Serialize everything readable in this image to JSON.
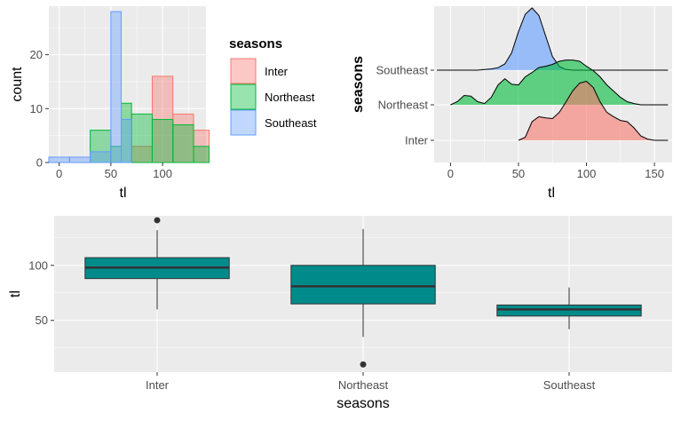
{
  "colors": {
    "Inter": "#F8766D",
    "Northeast": "#00BA38",
    "Southeast": "#619CFF",
    "box_fill": "#008B8B",
    "panel": "#EBEBEB"
  },
  "chart_data": [
    {
      "type": "bar",
      "subtype": "histogram",
      "xlabel": "tl",
      "ylabel": "count",
      "xlim": [
        -10,
        142
      ],
      "ylim": [
        0,
        29
      ],
      "x_ticks": [
        0,
        50,
        100
      ],
      "y_ticks": [
        0,
        10,
        20
      ],
      "bin_edges": [
        -10,
        10,
        30,
        50,
        60,
        70,
        90,
        110,
        130,
        145
      ],
      "series": [
        {
          "name": "Inter",
          "values": [
            0,
            0,
            0,
            0,
            0,
            3,
            16,
            9,
            6
          ]
        },
        {
          "name": "Northeast",
          "values": [
            0,
            0,
            6,
            3,
            11,
            9,
            8,
            7,
            3
          ]
        },
        {
          "name": "Southeast",
          "values": [
            1,
            1,
            2,
            28,
            8,
            0,
            0,
            0,
            0
          ]
        }
      ],
      "legend": {
        "title": "seasons",
        "position": "right"
      },
      "grid": true
    },
    {
      "type": "area",
      "subtype": "ridgeline",
      "xlabel": "tl",
      "ylabel": "seasons",
      "xlim": [
        -12,
        163
      ],
      "x_ticks": [
        0,
        50,
        100,
        150
      ],
      "categories": [
        "Inter",
        "Northeast",
        "Southeast"
      ],
      "grid": true,
      "series": [
        {
          "name": "Inter",
          "x": [
            50,
            55,
            60,
            65,
            70,
            75,
            80,
            85,
            90,
            95,
            100,
            105,
            110,
            115,
            120,
            125,
            130,
            135,
            140,
            145,
            150,
            155,
            160
          ],
          "density": [
            0,
            0.05,
            0.3,
            0.38,
            0.36,
            0.35,
            0.45,
            0.62,
            0.8,
            0.92,
            0.95,
            0.85,
            0.62,
            0.45,
            0.38,
            0.32,
            0.3,
            0.2,
            0.07,
            0.02,
            0,
            0,
            0
          ]
        },
        {
          "name": "Northeast",
          "x": [
            0,
            5,
            10,
            15,
            20,
            25,
            30,
            35,
            40,
            45,
            50,
            55,
            60,
            65,
            70,
            75,
            80,
            85,
            90,
            95,
            100,
            105,
            110,
            115,
            120,
            125,
            130,
            135,
            140,
            145,
            150,
            155,
            160
          ],
          "density": [
            0,
            0.05,
            0.15,
            0.14,
            0.05,
            0.02,
            0.12,
            0.32,
            0.42,
            0.33,
            0.32,
            0.45,
            0.52,
            0.6,
            0.62,
            0.65,
            0.7,
            0.72,
            0.72,
            0.7,
            0.62,
            0.55,
            0.45,
            0.32,
            0.22,
            0.12,
            0.05,
            0.02,
            0,
            0,
            0,
            0,
            0
          ]
        },
        {
          "name": "Southeast",
          "x": [
            -10,
            0,
            10,
            20,
            25,
            30,
            35,
            40,
            45,
            50,
            55,
            60,
            65,
            70,
            75,
            80,
            85,
            90,
            100,
            110,
            120,
            130,
            140,
            150,
            160
          ],
          "density": [
            0,
            0,
            0,
            0,
            0.01,
            0.02,
            0.04,
            0.1,
            0.28,
            0.62,
            0.9,
            1.0,
            0.88,
            0.55,
            0.22,
            0.06,
            0.01,
            0,
            0,
            0,
            0,
            0,
            0,
            0,
            0
          ]
        }
      ]
    },
    {
      "type": "box",
      "xlabel": "seasons",
      "ylabel": "tl",
      "ylim": [
        3,
        145
      ],
      "y_ticks": [
        50,
        100
      ],
      "categories": [
        "Inter",
        "Northeast",
        "Southeast"
      ],
      "grid": true,
      "boxes": [
        {
          "name": "Inter",
          "whisker_low": 60,
          "q1": 88,
          "median": 98,
          "q3": 107,
          "whisker_high": 132,
          "outliers": [
            141
          ]
        },
        {
          "name": "Northeast",
          "whisker_low": 35,
          "q1": 65,
          "median": 81,
          "q3": 100,
          "whisker_high": 133,
          "outliers": [
            10
          ]
        },
        {
          "name": "Southeast",
          "whisker_low": 42,
          "q1": 54,
          "median": 60,
          "q3": 64,
          "whisker_high": 80,
          "outliers": []
        }
      ]
    }
  ]
}
